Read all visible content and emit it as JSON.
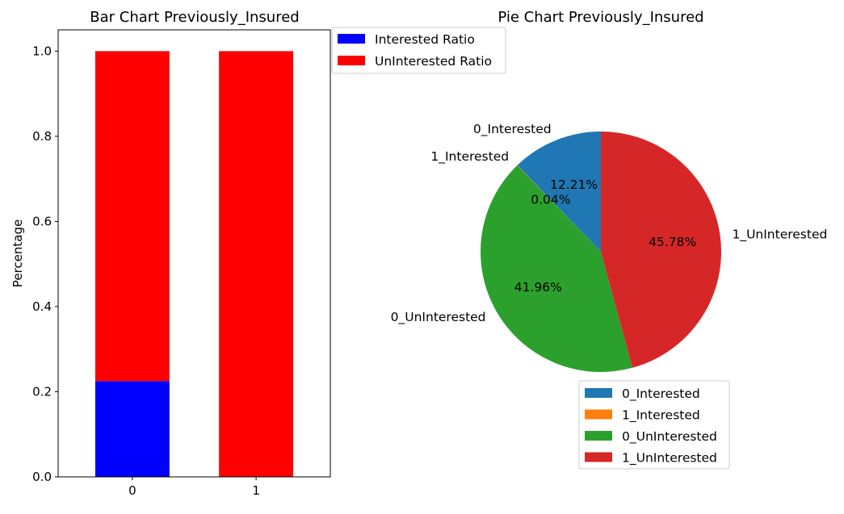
{
  "chart_data": [
    {
      "type": "bar",
      "stacked": true,
      "title": "Bar Chart Previously_Insured",
      "xlabel": "",
      "ylabel": "Percentage",
      "categories": [
        "0",
        "1"
      ],
      "series": [
        {
          "name": "Interested Ratio",
          "color": "#0000ff",
          "values": [
            0.225,
            0.001
          ]
        },
        {
          "name": "UnInterested Ratio",
          "color": "#ff0000",
          "values": [
            0.775,
            0.999
          ]
        }
      ],
      "ylim": [
        0,
        1.05
      ],
      "yticks": [
        "0.0",
        "0.2",
        "0.4",
        "0.6",
        "0.8",
        "1.0"
      ],
      "grid": false,
      "legend": "top-right"
    },
    {
      "type": "pie",
      "title": "Pie Chart Previously_Insured",
      "slices": [
        {
          "label": "0_Interested",
          "value": 12.21,
          "pct_label": "12.21%",
          "color": "#1f77b4"
        },
        {
          "label": "1_Interested",
          "value": 0.04,
          "pct_label": "0.04%",
          "color": "#ff7f0e"
        },
        {
          "label": "0_UnInterested",
          "value": 41.96,
          "pct_label": "41.96%",
          "color": "#2ca02c"
        },
        {
          "label": "1_UnInterested",
          "value": 45.78,
          "pct_label": "45.78%",
          "color": "#d62728"
        }
      ],
      "start_angle": 90,
      "direction": "counterclockwise",
      "legend": "lower-center"
    }
  ]
}
